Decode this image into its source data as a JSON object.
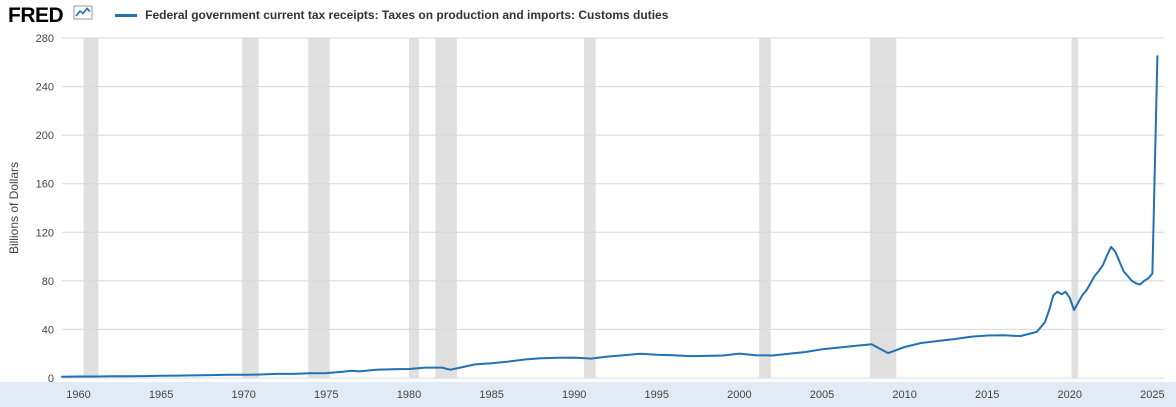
{
  "header": {
    "logo": "FRED",
    "series_title": "Federal government current tax receipts: Taxes on production and imports: Customs duties"
  },
  "chart_data": {
    "type": "line",
    "title": "Federal government current tax receipts: Taxes on production and imports: Customs duties",
    "ylabel": "Billions of Dollars",
    "ylim": [
      0,
      280
    ],
    "yticks": [
      0,
      40,
      80,
      120,
      160,
      200,
      240,
      280
    ],
    "xlim": [
      1959,
      2025.7
    ],
    "xticks": [
      1960,
      1965,
      1970,
      1975,
      1980,
      1985,
      1990,
      1995,
      2000,
      2005,
      2010,
      2015,
      2020,
      2025
    ],
    "grid": true,
    "legend_position": "top",
    "colors": {
      "line": "#2171b5",
      "recession_band": "#e0e0e0",
      "gridline": "#d8d8d8",
      "tick_text": "#444444",
      "footer_bg": "#e1ebf5"
    },
    "recession_bands": [
      [
        1960.3,
        1961.2
      ],
      [
        1969.9,
        1970.9
      ],
      [
        1973.9,
        1975.2
      ],
      [
        1980.0,
        1980.6
      ],
      [
        1981.6,
        1982.9
      ],
      [
        1990.6,
        1991.3
      ],
      [
        2001.2,
        2001.9
      ],
      [
        2007.9,
        2009.5
      ],
      [
        2020.1,
        2020.5
      ]
    ],
    "series": [
      {
        "name": "Federal government current tax receipts: Taxes on production and imports: Customs duties",
        "points": [
          [
            1959,
            1.1
          ],
          [
            1960,
            1.2
          ],
          [
            1961,
            1.2
          ],
          [
            1962,
            1.4
          ],
          [
            1963,
            1.5
          ],
          [
            1964,
            1.6
          ],
          [
            1965,
            1.8
          ],
          [
            1966,
            2.0
          ],
          [
            1967,
            2.1
          ],
          [
            1968,
            2.4
          ],
          [
            1969,
            2.6
          ],
          [
            1970,
            2.6
          ],
          [
            1971,
            2.9
          ],
          [
            1972,
            3.4
          ],
          [
            1973,
            3.4
          ],
          [
            1974,
            3.9
          ],
          [
            1975,
            4.0
          ],
          [
            1976,
            5.2
          ],
          [
            1976.5,
            6.0
          ],
          [
            1977,
            5.4
          ],
          [
            1978,
            6.8
          ],
          [
            1979,
            7.2
          ],
          [
            1980,
            7.4
          ],
          [
            1981,
            8.6
          ],
          [
            1982,
            8.6
          ],
          [
            1982.5,
            6.8
          ],
          [
            1983,
            8.2
          ],
          [
            1984,
            11.2
          ],
          [
            1985,
            12.2
          ],
          [
            1986,
            13.5
          ],
          [
            1987,
            15.2
          ],
          [
            1988,
            16.2
          ],
          [
            1989,
            16.7
          ],
          [
            1990,
            16.8
          ],
          [
            1991,
            16.0
          ],
          [
            1992,
            17.6
          ],
          [
            1993,
            18.8
          ],
          [
            1994,
            20.0
          ],
          [
            1995,
            19.2
          ],
          [
            1996,
            18.8
          ],
          [
            1997,
            18.0
          ],
          [
            1998,
            18.2
          ],
          [
            1999,
            18.5
          ],
          [
            2000,
            20.1
          ],
          [
            2001,
            18.8
          ],
          [
            2002,
            18.5
          ],
          [
            2003,
            20.0
          ],
          [
            2004,
            21.4
          ],
          [
            2005,
            23.6
          ],
          [
            2006,
            25.0
          ],
          [
            2007,
            26.4
          ],
          [
            2008,
            27.8
          ],
          [
            2009,
            20.5
          ],
          [
            2010,
            25.5
          ],
          [
            2011,
            28.8
          ],
          [
            2012,
            30.5
          ],
          [
            2013,
            32.0
          ],
          [
            2014,
            34.0
          ],
          [
            2015,
            35.0
          ],
          [
            2016,
            35.2
          ],
          [
            2017,
            34.5
          ],
          [
            2018,
            38.0
          ],
          [
            2018.5,
            46
          ],
          [
            2018.75,
            56
          ],
          [
            2019,
            68
          ],
          [
            2019.25,
            71
          ],
          [
            2019.5,
            69
          ],
          [
            2019.75,
            71
          ],
          [
            2020,
            66
          ],
          [
            2020.25,
            56
          ],
          [
            2020.5,
            62
          ],
          [
            2020.75,
            68
          ],
          [
            2021,
            72
          ],
          [
            2021.25,
            78
          ],
          [
            2021.5,
            84
          ],
          [
            2021.75,
            88
          ],
          [
            2022,
            93
          ],
          [
            2022.25,
            101
          ],
          [
            2022.5,
            108
          ],
          [
            2022.75,
            104
          ],
          [
            2023,
            96
          ],
          [
            2023.25,
            88
          ],
          [
            2023.5,
            84
          ],
          [
            2023.75,
            80
          ],
          [
            2024,
            78
          ],
          [
            2024.25,
            77
          ],
          [
            2024.5,
            80
          ],
          [
            2024.75,
            82
          ],
          [
            2025,
            86
          ],
          [
            2025.3,
            265
          ]
        ]
      }
    ]
  }
}
